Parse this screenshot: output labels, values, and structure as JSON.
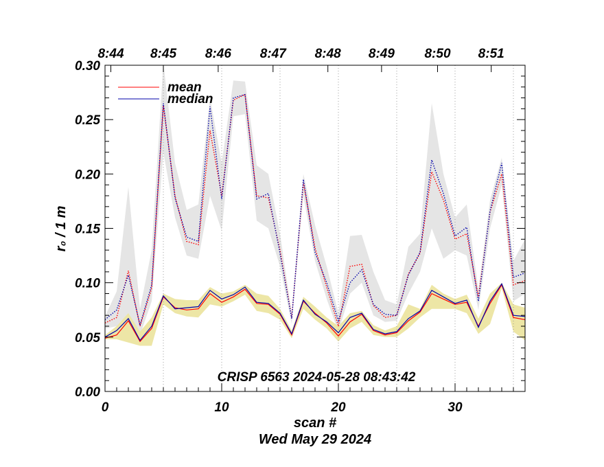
{
  "chart_data": {
    "type": "line",
    "xlabel": "scan #",
    "ylabel": "r₀ / 1 m",
    "date_label": "Wed May 29 2024",
    "annotation": "CRISP 6563 2024-05-28 08:43:42",
    "xlim": [
      0,
      36
    ],
    "ylim": [
      0.0,
      0.3
    ],
    "x_ticks": [
      0,
      10,
      20,
      30
    ],
    "y_ticks": [
      "0.00",
      "0.05",
      "0.10",
      "0.15",
      "0.20",
      "0.25",
      "0.30"
    ],
    "top_axis": {
      "labels": [
        "8:44",
        "8:45",
        "8:46",
        "8:47",
        "8:48",
        "8:49",
        "8:50",
        "8:51"
      ],
      "positions": [
        0.5,
        5,
        9.7,
        14.4,
        19.1,
        23.7,
        28.5,
        33.1
      ]
    },
    "vlines": [
      5,
      10,
      15,
      20,
      25,
      30,
      35
    ],
    "legend": [
      "mean",
      "median"
    ],
    "colors": {
      "mean": "#ff0000",
      "median": "#0000aa",
      "gray_band": "#e5e5e5",
      "yellow_band": "#ede6a6"
    },
    "x": [
      0,
      1,
      2,
      3,
      4,
      5,
      6,
      7,
      8,
      9,
      10,
      11,
      12,
      13,
      14,
      15,
      16,
      17,
      18,
      19,
      20,
      21,
      22,
      23,
      24,
      25,
      26,
      27,
      28,
      29,
      30,
      31,
      32,
      33,
      34,
      35,
      36
    ],
    "series": [
      {
        "name": "mean (low)",
        "values": [
          0.049,
          0.052,
          0.065,
          0.046,
          0.058,
          0.087,
          0.077,
          0.075,
          0.076,
          0.09,
          0.082,
          0.087,
          0.094,
          0.081,
          0.08,
          0.071,
          0.052,
          0.083,
          0.072,
          0.063,
          0.051,
          0.064,
          0.071,
          0.056,
          0.052,
          0.054,
          0.065,
          0.073,
          0.09,
          0.085,
          0.08,
          0.082,
          0.06,
          0.081,
          0.098,
          0.068,
          0.066
        ]
      },
      {
        "name": "median (low)",
        "values": [
          0.05,
          0.056,
          0.067,
          0.047,
          0.06,
          0.088,
          0.076,
          0.077,
          0.078,
          0.093,
          0.085,
          0.089,
          0.096,
          0.082,
          0.081,
          0.072,
          0.053,
          0.084,
          0.071,
          0.064,
          0.054,
          0.068,
          0.072,
          0.057,
          0.053,
          0.055,
          0.067,
          0.074,
          0.093,
          0.087,
          0.081,
          0.084,
          0.059,
          0.083,
          0.099,
          0.07,
          0.069
        ]
      },
      {
        "name": "mean (high)",
        "values": [
          0.063,
          0.068,
          0.111,
          0.06,
          0.095,
          0.263,
          0.18,
          0.138,
          0.135,
          0.24,
          0.18,
          0.268,
          0.273,
          0.18,
          0.178,
          0.13,
          0.068,
          0.192,
          0.132,
          0.096,
          0.06,
          0.115,
          0.117,
          0.079,
          0.068,
          0.07,
          0.108,
          0.127,
          0.202,
          0.176,
          0.14,
          0.145,
          0.087,
          0.165,
          0.2,
          0.098,
          0.102
        ]
      },
      {
        "name": "median (high)",
        "values": [
          0.066,
          0.075,
          0.107,
          0.061,
          0.098,
          0.265,
          0.178,
          0.142,
          0.138,
          0.262,
          0.177,
          0.27,
          0.273,
          0.177,
          0.182,
          0.127,
          0.067,
          0.195,
          0.128,
          0.1,
          0.065,
          0.1,
          0.112,
          0.08,
          0.071,
          0.07,
          0.107,
          0.128,
          0.213,
          0.182,
          0.143,
          0.151,
          0.083,
          0.166,
          0.21,
          0.105,
          0.109
        ]
      },
      {
        "name": "gray band upper",
        "values": [
          0.069,
          0.092,
          0.188,
          0.076,
          0.13,
          0.302,
          0.21,
          0.167,
          0.172,
          0.27,
          0.21,
          0.286,
          0.285,
          0.208,
          0.2,
          0.145,
          0.072,
          0.2,
          0.153,
          0.115,
          0.072,
          0.143,
          0.144,
          0.11,
          0.084,
          0.08,
          0.133,
          0.145,
          0.265,
          0.2,
          0.16,
          0.172,
          0.094,
          0.176,
          0.215,
          0.12,
          0.14
        ]
      },
      {
        "name": "gray band lower",
        "values": [
          0.058,
          0.06,
          0.06,
          0.052,
          0.083,
          0.22,
          0.16,
          0.125,
          0.122,
          0.18,
          0.148,
          0.253,
          0.255,
          0.157,
          0.15,
          0.115,
          0.062,
          0.18,
          0.12,
          0.085,
          0.055,
          0.09,
          0.1,
          0.07,
          0.064,
          0.065,
          0.09,
          0.11,
          0.15,
          0.122,
          0.13,
          0.125,
          0.075,
          0.15,
          0.19,
          0.083,
          0.09
        ]
      },
      {
        "name": "yellow band upper",
        "values": [
          0.052,
          0.06,
          0.072,
          0.055,
          0.068,
          0.09,
          0.085,
          0.084,
          0.084,
          0.096,
          0.09,
          0.092,
          0.098,
          0.09,
          0.088,
          0.076,
          0.056,
          0.087,
          0.078,
          0.068,
          0.06,
          0.072,
          0.074,
          0.061,
          0.056,
          0.06,
          0.08,
          0.076,
          0.098,
          0.09,
          0.085,
          0.089,
          0.067,
          0.09,
          0.1,
          0.08,
          0.077
        ]
      },
      {
        "name": "yellow band lower",
        "values": [
          0.048,
          0.048,
          0.045,
          0.042,
          0.042,
          0.08,
          0.072,
          0.069,
          0.068,
          0.08,
          0.078,
          0.083,
          0.089,
          0.074,
          0.072,
          0.066,
          0.049,
          0.076,
          0.066,
          0.058,
          0.046,
          0.058,
          0.064,
          0.052,
          0.05,
          0.05,
          0.058,
          0.068,
          0.076,
          0.076,
          0.076,
          0.072,
          0.053,
          0.062,
          0.095,
          0.055,
          0.047
        ]
      }
    ]
  }
}
